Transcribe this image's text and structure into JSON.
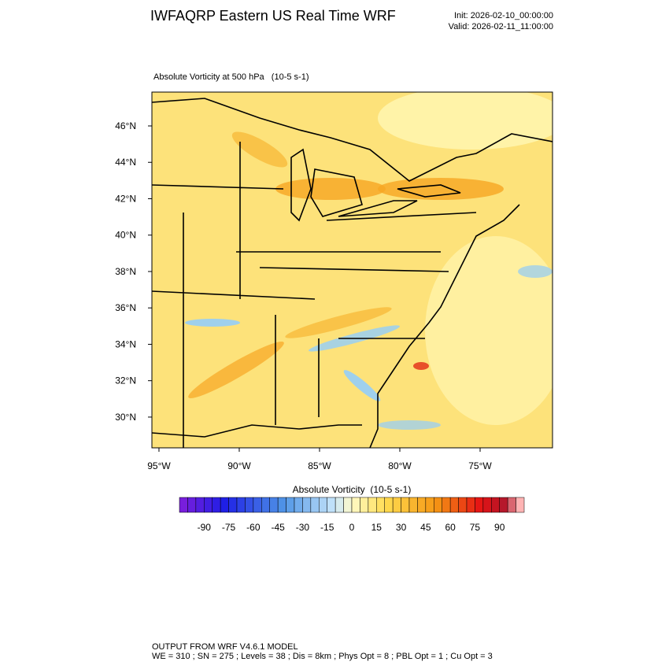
{
  "chart_data": {
    "type": "map",
    "title": "IWFAQRP Eastern US Real Time WRF",
    "init": "Init: 2026-02-10_00:00:00",
    "valid": "Valid: 2026-02-11_11:00:00",
    "subtitle": "Absolute Vorticity at 500 hPa   (10-5 s-1)",
    "xlim": [
      -95.44,
      -70.49
    ],
    "ylim": [
      28.31,
      47.86
    ],
    "xticks": [
      {
        "value": -95,
        "label": "95°W"
      },
      {
        "value": -90,
        "label": "90°W"
      },
      {
        "value": -85,
        "label": "85°W"
      },
      {
        "value": -80,
        "label": "80°W"
      },
      {
        "value": -75,
        "label": "75°W"
      }
    ],
    "yticks": [
      {
        "value": 30,
        "label": "30°N"
      },
      {
        "value": 32,
        "label": "32°N"
      },
      {
        "value": 34,
        "label": "34°N"
      },
      {
        "value": 36,
        "label": "36°N"
      },
      {
        "value": 38,
        "label": "38°N"
      },
      {
        "value": 40,
        "label": "40°N"
      },
      {
        "value": 42,
        "label": "42°N"
      },
      {
        "value": 44,
        "label": "44°N"
      },
      {
        "value": 46,
        "label": "46°N"
      }
    ],
    "colorbar": {
      "title": "Absolute Vorticity  (10-5 s-1)",
      "lim": [
        -105,
        105
      ],
      "step": 5,
      "ticks": [
        -90,
        -75,
        -60,
        -45,
        -30,
        -15,
        0,
        15,
        30,
        45,
        60,
        75,
        90
      ]
    },
    "footer": [
      "OUTPUT FROM WRF V4.6.1 MODEL",
      "WE = 310 ; SN = 275 ; Levels = 38 ; Dis = 8km ; Phys Opt = 8 ; PBL Opt = 1 ; Cu Opt = 3"
    ]
  }
}
